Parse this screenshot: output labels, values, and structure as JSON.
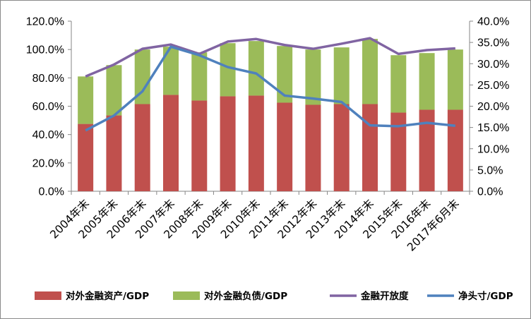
{
  "chart_data": {
    "type": "bar",
    "stacked": true,
    "categories": [
      "2004年末",
      "2005年末",
      "2006年末",
      "2007年末",
      "2008年末",
      "2009年末",
      "2010年末",
      "2011年末",
      "2012年末",
      "2013年末",
      "2014年末",
      "2015年末",
      "2016年末",
      "2017年6月末"
    ],
    "series": [
      {
        "name": "对外金融资产/GDP",
        "type": "bar",
        "axis": "left",
        "color": "#c0504d",
        "values": [
          47.5,
          53.5,
          61.5,
          68.0,
          64.0,
          67.0,
          67.5,
          62.5,
          61.0,
          61.5,
          61.5,
          55.5,
          57.5,
          57.5
        ]
      },
      {
        "name": "对外金融负债/GDP",
        "type": "bar",
        "axis": "left",
        "color": "#9bbb59",
        "values": [
          33.5,
          35.5,
          38.5,
          34.0,
          34.0,
          37.5,
          38.5,
          40.0,
          39.0,
          40.0,
          46.0,
          40.5,
          40.0,
          42.5
        ]
      },
      {
        "name": "金融开放度",
        "type": "line",
        "axis": "right",
        "color": "#8064a2",
        "values": [
          27.0,
          29.8,
          33.5,
          34.5,
          32.3,
          35.2,
          35.8,
          34.4,
          33.5,
          34.7,
          36.0,
          32.3,
          33.2,
          33.6
        ]
      },
      {
        "name": "净头寸/GDP",
        "type": "line",
        "axis": "right",
        "color": "#4f81bd",
        "values": [
          14.3,
          17.8,
          23.5,
          34.0,
          32.0,
          29.2,
          27.7,
          22.5,
          21.8,
          21.0,
          15.5,
          15.3,
          16.1,
          15.4
        ]
      }
    ],
    "y_left": {
      "min": 0,
      "max": 120,
      "step": 20,
      "tick_labels": [
        "0.0%",
        "20.0%",
        "40.0%",
        "60.0%",
        "80.0%",
        "100.0%",
        "120.0%"
      ]
    },
    "y_right": {
      "min": 0,
      "max": 40,
      "step": 5,
      "tick_labels": [
        "0.0%",
        "5.0%",
        "10.0%",
        "15.0%",
        "20.0%",
        "25.0%",
        "30.0%",
        "35.0%",
        "40.0%"
      ]
    },
    "grid": false,
    "legend_position": "bottom"
  }
}
